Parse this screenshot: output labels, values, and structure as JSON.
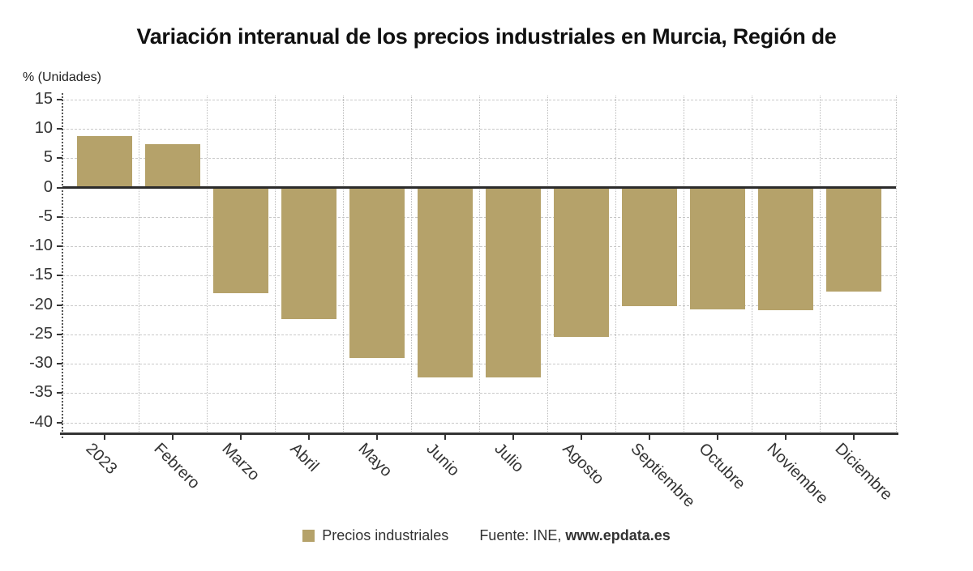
{
  "title": "Variación interanual de los precios industriales en Murcia, Región de",
  "axis_unit_label": "% (Unidades)",
  "legend": {
    "series_label": "Precios industriales",
    "source_prefix": "Fuente: INE, ",
    "source_site": "www.epdata.es"
  },
  "colors": {
    "bar": "#b5a26a",
    "zero_line": "#2b2b2b",
    "axis": "#333333",
    "grid": "#c9c9c9",
    "text": "#333333"
  },
  "chart_data": {
    "type": "bar",
    "title": "Variación interanual de los precios industriales en Murcia, Región de",
    "ylabel": "% (Unidades)",
    "xlabel": "",
    "categories": [
      "2023",
      "Febrero",
      "Marzo",
      "Abril",
      "Mayo",
      "Junio",
      "Julio",
      "Agosto",
      "Septiembre",
      "Octubre",
      "Noviembre",
      "Diciembre"
    ],
    "series": [
      {
        "name": "Precios industriales",
        "values": [
          8.8,
          7.4,
          -18.0,
          -22.4,
          -29.0,
          -32.4,
          -32.3,
          -25.4,
          -20.2,
          -20.7,
          -20.9,
          -17.7
        ]
      }
    ],
    "ylim": [
      -40,
      15
    ],
    "yticks": [
      15,
      10,
      5,
      0,
      -5,
      -10,
      -15,
      -20,
      -25,
      -30,
      -35,
      -40
    ],
    "grid": true,
    "legend_position": "bottom",
    "source": "Fuente: INE, www.epdata.es"
  }
}
